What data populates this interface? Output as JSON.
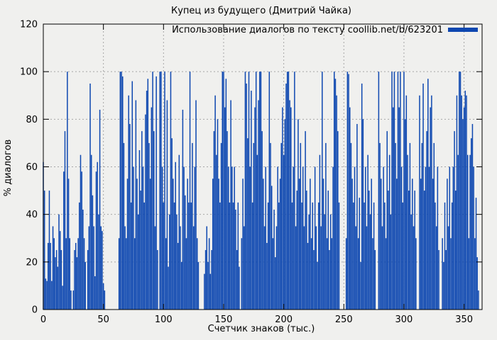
{
  "window": {
    "title": "Купец из будущего (Дмитрий Чайка)"
  },
  "colors": {
    "bar": "#0d47b0",
    "background": "#f0f0ee",
    "grid": "#a6a6a6",
    "border": "#000000",
    "text": "#000000"
  },
  "chart_data": {
    "type": "bar",
    "style": "impulses",
    "title": "Купец из будущего (Дмитрий Чайка)",
    "legend": "Использование диалогов по тексту coollib.net/b/623201",
    "legend_position": "top-right-inside",
    "grid": "dashed",
    "xlabel": "Счетчик знаков (тыс.)",
    "ylabel": "% диалогов",
    "ylim": [
      0,
      120
    ],
    "xlim": [
      0,
      365
    ],
    "y_ticks": [
      0,
      20,
      40,
      60,
      80,
      100,
      120
    ],
    "x_ticks": [
      0,
      50,
      100,
      150,
      200,
      250,
      300,
      350
    ],
    "x_start": 0,
    "x_step": 1,
    "values": [
      62,
      50,
      13,
      12,
      28,
      50,
      28,
      12,
      35,
      30,
      22,
      25,
      18,
      40,
      33,
      25,
      10,
      58,
      75,
      30,
      100,
      55,
      30,
      8,
      0,
      8,
      25,
      28,
      22,
      30,
      45,
      65,
      58,
      42,
      30,
      20,
      0,
      25,
      35,
      95,
      65,
      48,
      35,
      14,
      58,
      62,
      40,
      84,
      35,
      33,
      11,
      8,
      0,
      0,
      0,
      0,
      0,
      0,
      0,
      0,
      0,
      0,
      0,
      30,
      100,
      100,
      98,
      70,
      35,
      30,
      55,
      90,
      78,
      45,
      96,
      60,
      30,
      88,
      55,
      40,
      67,
      50,
      75,
      60,
      45,
      82,
      92,
      97,
      70,
      55,
      85,
      100,
      75,
      35,
      98,
      25,
      0,
      100,
      100,
      60,
      45,
      100,
      30,
      88,
      18,
      40,
      100,
      72,
      55,
      45,
      62,
      40,
      28,
      65,
      35,
      20,
      84,
      60,
      48,
      30,
      55,
      45,
      100,
      45,
      70,
      35,
      60,
      88,
      30,
      20,
      0,
      0,
      0,
      0,
      15,
      25,
      35,
      20,
      30,
      15,
      25,
      55,
      75,
      90,
      65,
      80,
      55,
      45,
      70,
      100,
      100,
      85,
      97,
      75,
      60,
      45,
      88,
      60,
      45,
      60,
      42,
      25,
      45,
      18,
      0,
      30,
      55,
      35,
      100,
      95,
      72,
      100,
      60,
      92,
      45,
      70,
      85,
      100,
      65,
      88,
      100,
      100,
      75,
      55,
      35,
      60,
      28,
      45,
      100,
      70,
      52,
      30,
      42,
      22,
      35,
      60,
      45,
      55,
      70,
      85,
      65,
      80,
      95,
      100,
      100,
      88,
      85,
      45,
      60,
      100,
      35,
      50,
      80,
      55,
      70,
      45,
      60,
      35,
      75,
      50,
      28,
      40,
      55,
      30,
      45,
      25,
      60,
      35,
      20,
      45,
      65,
      35,
      100,
      55,
      40,
      70,
      30,
      50,
      25,
      40,
      30,
      60,
      100,
      97,
      90,
      75,
      45,
      0,
      0,
      0,
      0,
      0,
      30,
      100,
      99,
      85,
      70,
      55,
      45,
      60,
      35,
      78,
      30,
      47,
      20,
      95,
      80,
      45,
      60,
      35,
      65,
      50,
      40,
      55,
      30,
      45,
      25,
      0,
      0,
      100,
      70,
      55,
      35,
      60,
      45,
      30,
      75,
      50,
      65,
      40,
      100,
      85,
      100,
      70,
      55,
      100,
      85,
      100,
      60,
      45,
      100,
      80,
      90,
      65,
      50,
      70,
      40,
      55,
      35,
      50,
      30,
      0,
      0,
      90,
      55,
      70,
      95,
      50,
      60,
      75,
      97,
      60,
      85,
      90,
      55,
      70,
      45,
      35,
      60,
      25,
      0,
      0,
      30,
      20,
      45,
      25,
      55,
      35,
      60,
      30,
      45,
      60,
      75,
      50,
      90,
      65,
      100,
      100,
      90,
      80,
      85,
      92,
      90,
      65,
      30,
      65,
      72,
      78,
      60,
      30,
      47,
      22,
      8,
      0,
      0
    ]
  }
}
